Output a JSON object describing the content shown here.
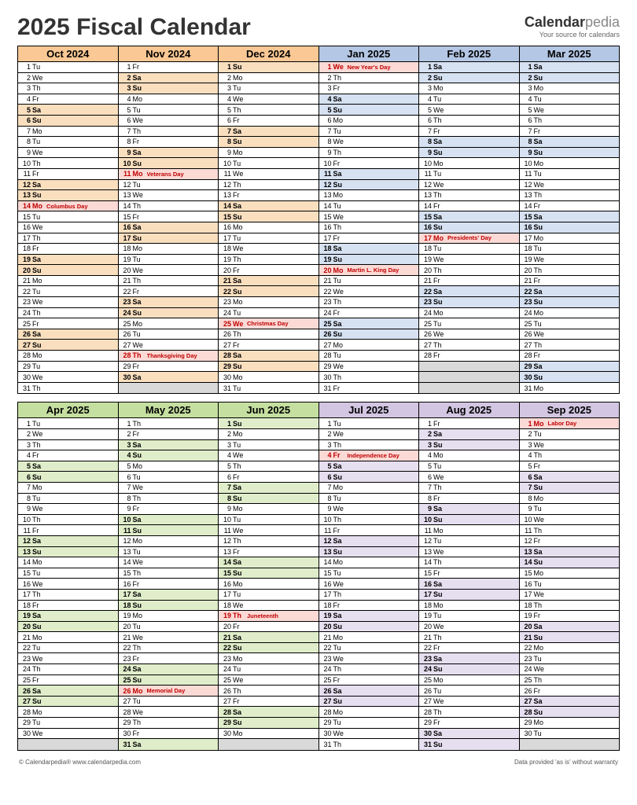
{
  "title": "2025 Fiscal Calendar",
  "brand": {
    "name1": "Calendar",
    "name2": "pedia",
    "sub": "Your source for calendars"
  },
  "footer": {
    "left": "© Calendarpedia®   www.calendarpedia.com",
    "right": "Data provided 'as is' without warranty"
  },
  "colors": {
    "header_orange": "#f9c894",
    "header_blue": "#b4c7e4",
    "header_green": "#c5dfa0",
    "header_purple": "#d2c6e2",
    "wk_orange": "#fadfbf",
    "wk_blue": "#d6e1f1",
    "wk_green": "#e0edca",
    "wk_purple": "#e6dff0",
    "hol_bg": "#fbdad6",
    "empty": "#d9d9d9"
  },
  "halves": [
    {
      "months": [
        {
          "label": "Oct 2024",
          "grp": "orange",
          "startDow": 1,
          "ndays": 31,
          "hol": {
            "14": "Columbus Day"
          }
        },
        {
          "label": "Nov 2024",
          "grp": "orange",
          "startDow": 4,
          "ndays": 30,
          "hol": {
            "11": "Veterans Day",
            "28": "Thanksgiving Day"
          }
        },
        {
          "label": "Dec 2024",
          "grp": "orange",
          "startDow": 6,
          "ndays": 31,
          "hol": {
            "25": "Christmas Day"
          }
        },
        {
          "label": "Jan 2025",
          "grp": "blue",
          "startDow": 2,
          "ndays": 31,
          "hol": {
            "1": "New Year's Day",
            "20": "Martin L. King Day"
          }
        },
        {
          "label": "Feb 2025",
          "grp": "blue",
          "startDow": 5,
          "ndays": 28,
          "hol": {
            "17": "Presidents' Day"
          }
        },
        {
          "label": "Mar 2025",
          "grp": "blue",
          "startDow": 5,
          "ndays": 31,
          "hol": {}
        }
      ]
    },
    {
      "months": [
        {
          "label": "Apr 2025",
          "grp": "green",
          "startDow": 1,
          "ndays": 30,
          "hol": {}
        },
        {
          "label": "May 2025",
          "grp": "green",
          "startDow": 3,
          "ndays": 31,
          "hol": {
            "26": "Memorial Day"
          }
        },
        {
          "label": "Jun 2025",
          "grp": "green",
          "startDow": 6,
          "ndays": 30,
          "hol": {
            "19": "Juneteenth"
          }
        },
        {
          "label": "Jul 2025",
          "grp": "purple",
          "startDow": 1,
          "ndays": 31,
          "hol": {
            "4": "Independence Day"
          }
        },
        {
          "label": "Aug 2025",
          "grp": "purple",
          "startDow": 4,
          "ndays": 31,
          "hol": {}
        },
        {
          "label": "Sep 2025",
          "grp": "purple",
          "startDow": 0,
          "ndays": 30,
          "hol": {
            "1": "Labor Day"
          }
        }
      ]
    }
  ],
  "dows": [
    "Mo",
    "Tu",
    "We",
    "Th",
    "Fr",
    "Sa",
    "Su"
  ]
}
